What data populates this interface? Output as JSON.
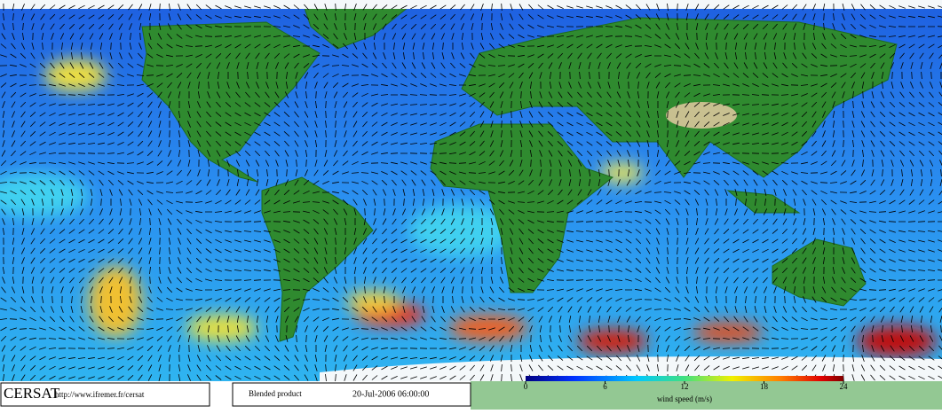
{
  "footer": {
    "logo": "CERSAT",
    "url": "http://www.ifremer.fr/cersat",
    "product": "Blended product",
    "timestamp": "20-Jul-2006 06:00:00"
  },
  "colorbar": {
    "lim": [
      0,
      24
    ],
    "ticks": [
      0,
      6,
      12,
      18,
      24
    ],
    "label": "wind speed (m/s)"
  }
}
